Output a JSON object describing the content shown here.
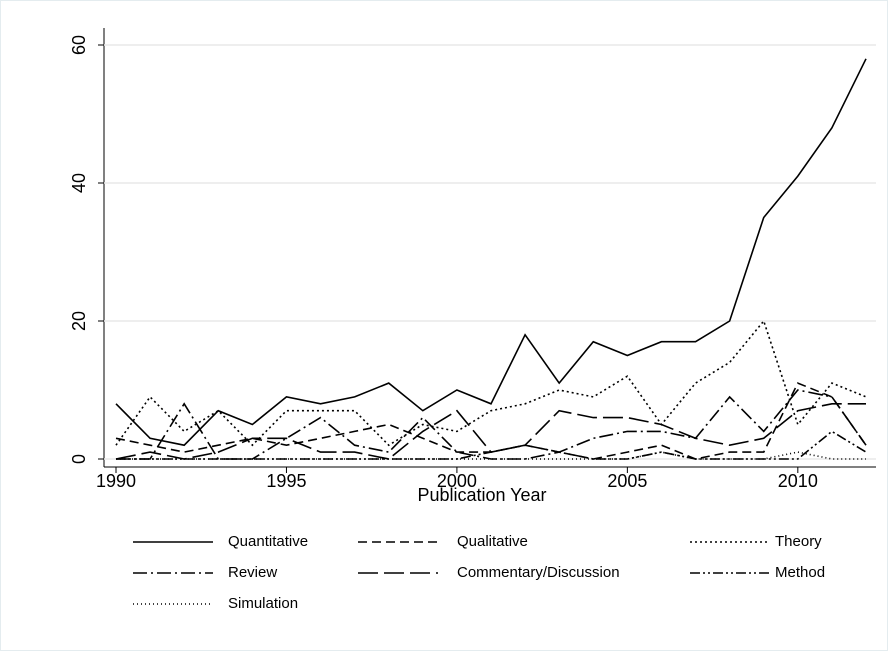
{
  "chart_data": {
    "type": "line",
    "x_label": "Publication Year",
    "x": [
      1990,
      1991,
      1992,
      1993,
      1994,
      1995,
      1996,
      1997,
      1998,
      1999,
      2000,
      2001,
      2002,
      2003,
      2004,
      2005,
      2006,
      2007,
      2008,
      2009,
      2010,
      2011,
      2012
    ],
    "xlim": [
      1990,
      2012
    ],
    "xticks": [
      1990,
      1995,
      2000,
      2005,
      2010
    ],
    "ylim": [
      0,
      60
    ],
    "yticks": [
      0,
      20,
      40,
      60
    ],
    "grid": true,
    "series": [
      {
        "name": "Quantitative",
        "color": "#000000",
        "values": [
          8,
          3,
          2,
          7,
          5,
          9,
          8,
          9,
          11,
          7,
          10,
          8,
          18,
          11,
          17,
          15,
          17,
          17,
          20,
          35,
          41,
          48,
          58
        ]
      },
      {
        "name": "Qualitative",
        "color": "#000000",
        "values": [
          3,
          2,
          1,
          2,
          3,
          2,
          3,
          4,
          5,
          3,
          1,
          1,
          2,
          1,
          0,
          1,
          2,
          0,
          1,
          1,
          11,
          9,
          2
        ]
      },
      {
        "name": "Theory",
        "color": "#000000",
        "values": [
          2,
          9,
          4,
          7,
          2,
          7,
          7,
          7,
          2,
          5,
          4,
          7,
          8,
          10,
          9,
          12,
          5,
          11,
          14,
          20,
          5,
          11,
          9
        ]
      },
      {
        "name": "Review",
        "color": "#000000",
        "values": [
          0,
          0,
          8,
          0,
          0,
          3,
          6,
          2,
          1,
          6,
          1,
          0,
          0,
          1,
          3,
          4,
          4,
          3,
          9,
          4,
          10,
          9,
          2
        ]
      },
      {
        "name": "Commentary/Discussion",
        "color": "#000000",
        "values": [
          0,
          1,
          0,
          1,
          3,
          3,
          1,
          1,
          0,
          4,
          7,
          1,
          2,
          7,
          6,
          6,
          5,
          3,
          2,
          3,
          7,
          8,
          8
        ]
      },
      {
        "name": "Method",
        "color": "#000000",
        "values": [
          0,
          0,
          0,
          0,
          0,
          0,
          0,
          0,
          0,
          0,
          0,
          1,
          2,
          1,
          0,
          0,
          1,
          0,
          0,
          0,
          0,
          4,
          1
        ]
      },
      {
        "name": "Simulation",
        "color": "#000000",
        "values": [
          0,
          0,
          0,
          0,
          0,
          0,
          0,
          0,
          0,
          0,
          0,
          0,
          0,
          0,
          0,
          0,
          1,
          0,
          0,
          0,
          1,
          0,
          0
        ]
      }
    ]
  }
}
